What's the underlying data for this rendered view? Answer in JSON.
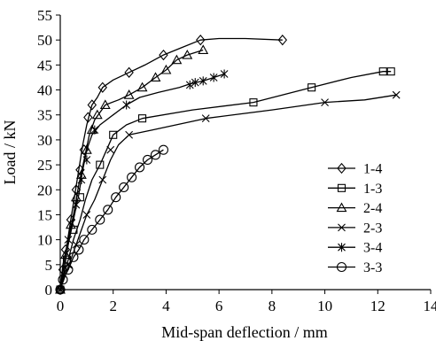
{
  "chart_data": {
    "type": "line",
    "xlabel": "Mid-span deflection / mm",
    "ylabel": "Load / kN",
    "xlim": [
      0,
      14
    ],
    "ylim": [
      0,
      55
    ],
    "xticks": [
      "0",
      "2",
      "4",
      "6",
      "8",
      "10",
      "12",
      "14"
    ],
    "yticks": [
      "0",
      "5",
      "10",
      "15",
      "20",
      "25",
      "30",
      "35",
      "40",
      "45",
      "50",
      "55"
    ],
    "grid": false,
    "legend_position": "right",
    "series": [
      {
        "name": "1-4",
        "marker": "diamond",
        "curve": [
          [
            0,
            0
          ],
          [
            0.1,
            4
          ],
          [
            0.25,
            9
          ],
          [
            0.4,
            14
          ],
          [
            0.55,
            19
          ],
          [
            0.7,
            24
          ],
          [
            0.85,
            29
          ],
          [
            1.0,
            33
          ],
          [
            1.1,
            35
          ],
          [
            1.2,
            37
          ],
          [
            1.4,
            38.5
          ],
          [
            1.6,
            40.5
          ],
          [
            2.0,
            42
          ],
          [
            2.6,
            43.5
          ],
          [
            3.2,
            45
          ],
          [
            3.9,
            47
          ],
          [
            4.6,
            48.5
          ],
          [
            5.3,
            50
          ],
          [
            6.0,
            50.3
          ],
          [
            7.0,
            50.3
          ],
          [
            8.4,
            50
          ]
        ],
        "points": [
          [
            0,
            0
          ],
          [
            0.1,
            4
          ],
          [
            0.2,
            8
          ],
          [
            0.4,
            14
          ],
          [
            0.6,
            20
          ],
          [
            0.75,
            24
          ],
          [
            0.9,
            28
          ],
          [
            1.05,
            34.5
          ],
          [
            1.2,
            37
          ],
          [
            1.6,
            40.5
          ],
          [
            2.6,
            43.5
          ],
          [
            3.9,
            47
          ],
          [
            5.3,
            50
          ],
          [
            8.4,
            50
          ]
        ]
      },
      {
        "name": "1-3",
        "marker": "square",
        "curve": [
          [
            0,
            0
          ],
          [
            0.15,
            3
          ],
          [
            0.3,
            6
          ],
          [
            0.5,
            10
          ],
          [
            0.75,
            14
          ],
          [
            0.95,
            18
          ],
          [
            1.2,
            22
          ],
          [
            1.5,
            25
          ],
          [
            1.75,
            28
          ],
          [
            2.0,
            31
          ],
          [
            2.5,
            33
          ],
          [
            3.1,
            34.3
          ],
          [
            5.0,
            36
          ],
          [
            7.3,
            37.5
          ],
          [
            9.5,
            40.5
          ],
          [
            11.0,
            42.5
          ],
          [
            12.2,
            43.7
          ],
          [
            12.5,
            43.7
          ]
        ],
        "points": [
          [
            0,
            0
          ],
          [
            0.25,
            6
          ],
          [
            0.5,
            12
          ],
          [
            0.75,
            18.5
          ],
          [
            1.5,
            25
          ],
          [
            2.0,
            31
          ],
          [
            3.1,
            34.3
          ],
          [
            7.3,
            37.5
          ],
          [
            9.5,
            40.5
          ],
          [
            12.2,
            43.7
          ],
          [
            12.5,
            43.7
          ]
        ]
      },
      {
        "name": "2-4",
        "marker": "triangle",
        "curve": [
          [
            0,
            0
          ],
          [
            0.1,
            5
          ],
          [
            0.3,
            10
          ],
          [
            0.5,
            15
          ],
          [
            0.7,
            21
          ],
          [
            0.9,
            26
          ],
          [
            1.1,
            31
          ],
          [
            1.3,
            34
          ],
          [
            1.7,
            37
          ],
          [
            2.2,
            38
          ],
          [
            2.6,
            39
          ],
          [
            3.1,
            40.5
          ],
          [
            3.6,
            42.5
          ],
          [
            4.0,
            44
          ],
          [
            4.4,
            46
          ],
          [
            4.8,
            47
          ],
          [
            5.4,
            48
          ]
        ],
        "points": [
          [
            0,
            0
          ],
          [
            0.2,
            7
          ],
          [
            0.4,
            13
          ],
          [
            0.6,
            18.5
          ],
          [
            0.8,
            23
          ],
          [
            1.0,
            28
          ],
          [
            1.2,
            32
          ],
          [
            1.4,
            35
          ],
          [
            1.7,
            37
          ],
          [
            2.6,
            39
          ],
          [
            3.1,
            40.5
          ],
          [
            3.6,
            42.5
          ],
          [
            4.0,
            44
          ],
          [
            4.4,
            46
          ],
          [
            4.8,
            47
          ],
          [
            5.4,
            48
          ]
        ]
      },
      {
        "name": "2-3",
        "marker": "x",
        "curve": [
          [
            0,
            0
          ],
          [
            0.2,
            3
          ],
          [
            0.4,
            6
          ],
          [
            0.6,
            9
          ],
          [
            0.8,
            12
          ],
          [
            1.0,
            15
          ],
          [
            1.3,
            18
          ],
          [
            1.6,
            22
          ],
          [
            1.9,
            26
          ],
          [
            2.2,
            29
          ],
          [
            2.6,
            31
          ],
          [
            3.5,
            32
          ],
          [
            5.5,
            34.3
          ],
          [
            8.0,
            36
          ],
          [
            10.0,
            37.5
          ],
          [
            11.5,
            38
          ],
          [
            12.7,
            39
          ]
        ],
        "points": [
          [
            0,
            0
          ],
          [
            0.3,
            5
          ],
          [
            0.6,
            9
          ],
          [
            1.0,
            15
          ],
          [
            1.6,
            22
          ],
          [
            1.9,
            28
          ],
          [
            2.6,
            31
          ],
          [
            5.5,
            34.3
          ],
          [
            10.0,
            37.5
          ],
          [
            12.7,
            39
          ]
        ]
      },
      {
        "name": "3-4",
        "marker": "star",
        "curve": [
          [
            0,
            0
          ],
          [
            0.15,
            4
          ],
          [
            0.3,
            9
          ],
          [
            0.5,
            14
          ],
          [
            0.7,
            19
          ],
          [
            0.85,
            24
          ],
          [
            1.0,
            28
          ],
          [
            1.2,
            31
          ],
          [
            1.5,
            33
          ],
          [
            2.0,
            35
          ],
          [
            2.5,
            37
          ],
          [
            3.0,
            38.5
          ],
          [
            3.7,
            39.5
          ],
          [
            4.5,
            40.5
          ],
          [
            4.9,
            41.2
          ],
          [
            5.4,
            41.8
          ],
          [
            5.8,
            42.5
          ],
          [
            6.2,
            43.2
          ]
        ],
        "points": [
          [
            0,
            0
          ],
          [
            0.3,
            10
          ],
          [
            0.6,
            17
          ],
          [
            0.8,
            22
          ],
          [
            1.0,
            26
          ],
          [
            1.3,
            32
          ],
          [
            2.5,
            37
          ],
          [
            4.9,
            41
          ],
          [
            5.1,
            41.5
          ],
          [
            5.4,
            41.8
          ],
          [
            5.8,
            42.5
          ],
          [
            6.2,
            43.2
          ]
        ]
      },
      {
        "name": "3-3",
        "marker": "circle",
        "curve": [
          [
            0,
            0
          ],
          [
            0.1,
            2
          ],
          [
            0.3,
            4
          ],
          [
            0.5,
            6.5
          ],
          [
            0.7,
            8
          ],
          [
            0.9,
            10
          ],
          [
            1.2,
            12
          ],
          [
            1.5,
            14
          ],
          [
            1.8,
            16
          ],
          [
            2.1,
            18.5
          ],
          [
            2.4,
            20.5
          ],
          [
            2.7,
            22.5
          ],
          [
            3.0,
            24.5
          ],
          [
            3.3,
            26
          ],
          [
            3.6,
            27
          ],
          [
            3.9,
            28
          ]
        ],
        "points": [
          [
            0,
            0
          ],
          [
            0.1,
            2
          ],
          [
            0.3,
            4
          ],
          [
            0.5,
            6.5
          ],
          [
            0.7,
            8
          ],
          [
            0.9,
            10
          ],
          [
            1.2,
            12
          ],
          [
            1.5,
            14
          ],
          [
            1.8,
            16
          ],
          [
            2.1,
            18.5
          ],
          [
            2.4,
            20.5
          ],
          [
            2.7,
            22.5
          ],
          [
            3.0,
            24.5
          ],
          [
            3.3,
            26
          ],
          [
            3.6,
            27
          ],
          [
            3.9,
            28
          ]
        ]
      }
    ]
  }
}
